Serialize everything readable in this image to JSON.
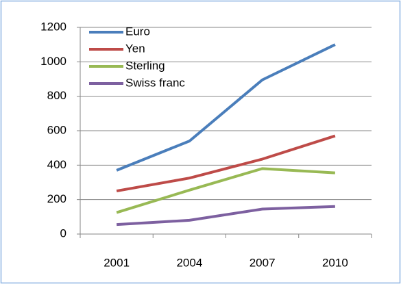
{
  "chart_data": {
    "type": "line",
    "categories": [
      "2001",
      "2004",
      "2007",
      "2010"
    ],
    "series": [
      {
        "name": "Euro",
        "color": "#4a7ebb",
        "values": [
          370,
          540,
          895,
          1100
        ]
      },
      {
        "name": "Yen",
        "color": "#be4b48",
        "values": [
          250,
          325,
          435,
          570
        ]
      },
      {
        "name": "Sterling",
        "color": "#98b954",
        "values": [
          125,
          255,
          380,
          355
        ]
      },
      {
        "name": "Swiss franc",
        "color": "#7d60a0",
        "values": [
          55,
          80,
          145,
          160
        ]
      }
    ],
    "ylim": [
      0,
      1200
    ],
    "yticks": [
      0,
      200,
      400,
      600,
      800,
      1000,
      1200
    ],
    "grid": true,
    "legend": "upper left"
  }
}
